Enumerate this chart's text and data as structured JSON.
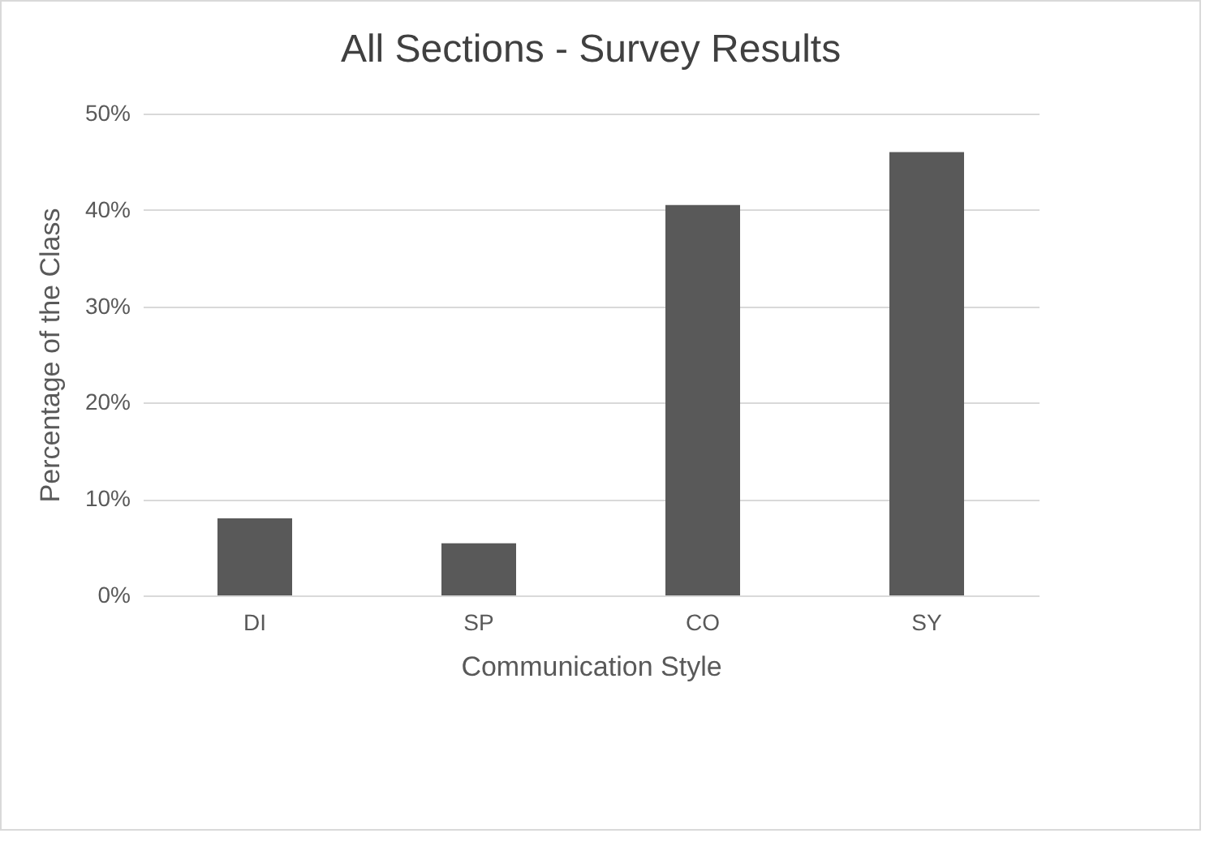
{
  "chart_data": {
    "type": "bar",
    "title": "All Sections - Survey Results",
    "xlabel": "Communication Style",
    "ylabel": "Percentage of the Class",
    "categories": [
      "DI",
      "SP",
      "CO",
      "SY"
    ],
    "values": [
      8.0,
      5.4,
      40.5,
      46.0
    ],
    "color": "#595959",
    "ylim": [
      0,
      50
    ],
    "yticks": [
      {
        "value": 0,
        "label": "0%"
      },
      {
        "value": 10,
        "label": "10%"
      },
      {
        "value": 20,
        "label": "20%"
      },
      {
        "value": 30,
        "label": "30%"
      },
      {
        "value": 40,
        "label": "40%"
      },
      {
        "value": 50,
        "label": "50%"
      }
    ],
    "grid": "y"
  }
}
